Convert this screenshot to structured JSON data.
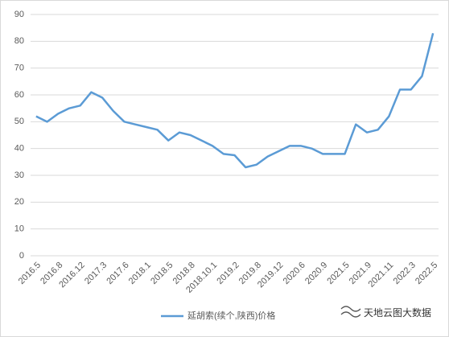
{
  "chart_data": {
    "type": "line",
    "categories": [
      "2016.5",
      null,
      "2016.8",
      null,
      "2016.12",
      null,
      "2017.3",
      null,
      "2017.6",
      null,
      "2018.1",
      null,
      "2018.5",
      null,
      "2018.8",
      null,
      "2018.10.1",
      null,
      "2019.2",
      null,
      "2019.8",
      null,
      "2019.12",
      null,
      "2020.6",
      null,
      "2020.9",
      null,
      "2021.5",
      null,
      "2021.9",
      null,
      "2021.11",
      null,
      "2022.3",
      null,
      "2022.5"
    ],
    "series": [
      {
        "name": "延胡索(续个,陕西)价格",
        "color": "#5b9bd5",
        "values": [
          52,
          50,
          53,
          55,
          56,
          61,
          59,
          54,
          50,
          49,
          48,
          47,
          43,
          46,
          45,
          43,
          41,
          38,
          37.5,
          33,
          34,
          37,
          39,
          41,
          41,
          40,
          38,
          38,
          38,
          49,
          46,
          47,
          52,
          62,
          62,
          67,
          83
        ]
      }
    ],
    "ylim": [
      0,
      90
    ],
    "yticks": [
      0,
      10,
      20,
      30,
      40,
      50,
      60,
      70,
      80,
      90
    ],
    "grid": true,
    "legend": "bottom",
    "watermark": "天地云图大数据"
  }
}
